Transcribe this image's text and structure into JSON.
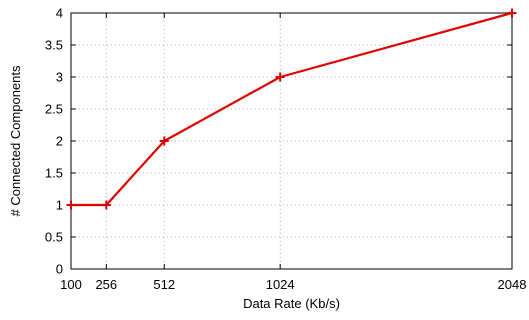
{
  "chart_data": {
    "type": "line",
    "title": "",
    "xlabel": "Data Rate (Kb/s)",
    "ylabel": "# Connected Components",
    "x": [
      100,
      256,
      512,
      1024,
      2048
    ],
    "series": [
      {
        "values": [
          1,
          1,
          2,
          3,
          4
        ],
        "color": "#e00000",
        "marker": "plus"
      }
    ],
    "xticks": [
      100,
      256,
      512,
      1024,
      2048
    ],
    "yticks": [
      0,
      0.5,
      1,
      1.5,
      2,
      2.5,
      3,
      3.5,
      4
    ],
    "ytick_labels": [
      "0",
      "0.5",
      "1",
      "1.5",
      "2",
      "2.5",
      "3",
      "3.5",
      "4"
    ],
    "xlim": [
      100,
      2048
    ],
    "ylim": [
      0,
      4
    ],
    "grid": true,
    "legend": "none"
  }
}
